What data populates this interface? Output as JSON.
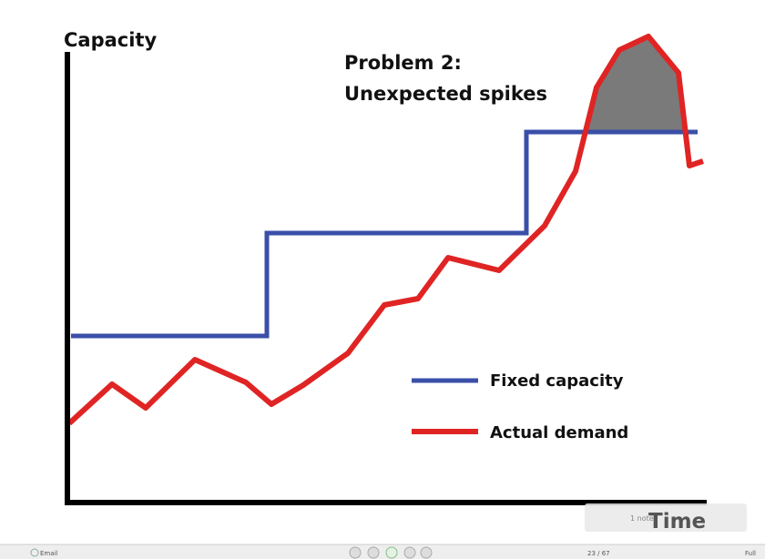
{
  "slide": {
    "y_axis_label": "Capacity",
    "x_axis_label": "Time",
    "title_lines": [
      "Problem 2:",
      "Unexpected spikes"
    ],
    "legend": [
      "Fixed capacity",
      "Actual demand"
    ]
  },
  "notes": "1 note",
  "toolbar": {
    "email": "Email",
    "page": "23 / 67",
    "full": "Full"
  }
}
